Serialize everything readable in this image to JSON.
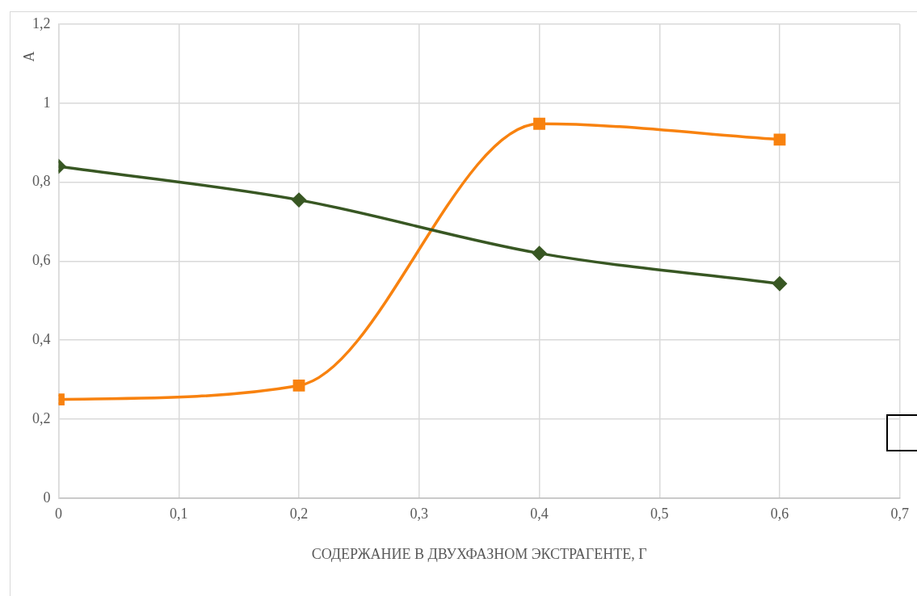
{
  "chart_data": {
    "type": "line",
    "xlabel": "СОДЕРЖАНИЕ В ДВУХФАЗНОМ ЭКСТРАГЕНТЕ, Г",
    "ylabel": "A",
    "x": [
      0,
      0.2,
      0.4,
      0.6
    ],
    "series": [
      {
        "color": "#385723",
        "marker": "diamond",
        "values": [
          0.84,
          0.755,
          0.62,
          0.543
        ]
      },
      {
        "color": "#f8820f",
        "marker": "square",
        "values": [
          0.25,
          0.285,
          0.948,
          0.908
        ]
      }
    ],
    "xlim": [
      0,
      0.7
    ],
    "xticks": [
      {
        "value": 0,
        "label": "0"
      },
      {
        "value": 0.1,
        "label": "0,1"
      },
      {
        "value": 0.2,
        "label": "0,2"
      },
      {
        "value": 0.3,
        "label": "0,3"
      },
      {
        "value": 0.4,
        "label": "0,4"
      },
      {
        "value": 0.5,
        "label": "0,5"
      },
      {
        "value": 0.6,
        "label": "0,6"
      },
      {
        "value": 0.7,
        "label": "0,7"
      }
    ],
    "ylim": [
      0,
      1.2
    ],
    "yticks": [
      {
        "value": 0,
        "label": "0"
      },
      {
        "value": 0.2,
        "label": "0,2"
      },
      {
        "value": 0.4,
        "label": "0,4"
      },
      {
        "value": 0.6,
        "label": "0,6"
      },
      {
        "value": 0.8,
        "label": "0,8"
      },
      {
        "value": 1,
        "label": "1"
      },
      {
        "value": 1.2,
        "label": "1,2"
      }
    ],
    "grid": true,
    "legend": false,
    "line_style": "solid"
  }
}
